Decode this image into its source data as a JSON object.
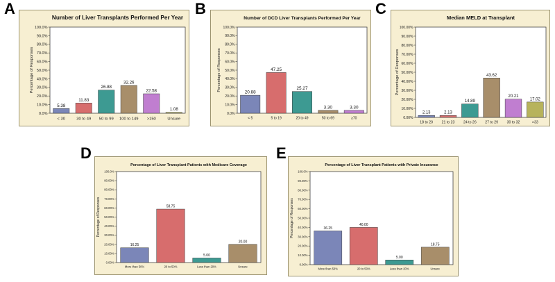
{
  "figure": {
    "panel_letters": [
      "A",
      "B",
      "C",
      "D",
      "E"
    ]
  },
  "colors": {
    "panel_bg": "#f7efd2",
    "panel_border": "#9c9470",
    "plot_bg": "#ffffff",
    "bar_stroke": "#3a3a3a"
  },
  "chart_data": [
    {
      "panel": "A",
      "type": "bar",
      "title": "Number of Liver Transplants Performed Per Year",
      "xlabel": "",
      "ylabel": "Percentage of Responses",
      "ylim": [
        0,
        100
      ],
      "yticks": [
        "0.0%",
        "10.0%",
        "20.0%",
        "30.0%",
        "40.0%",
        "50.0%",
        "60.0%",
        "70.0%",
        "80.0%",
        "90.0%",
        "100.0%"
      ],
      "categories": [
        "< 30",
        "30 to 49",
        "50 to 99",
        "100  to  149",
        ">150",
        "Unsure"
      ],
      "values": [
        5.38,
        11.83,
        26.88,
        32.26,
        22.58,
        1.08
      ],
      "value_labels": [
        "5.38",
        "11.83",
        "26.88",
        "32.26",
        "22.58",
        "1.08"
      ],
      "colors": [
        "#7b86b8",
        "#d76d6d",
        "#3d9a92",
        "#a88e6a",
        "#c07ed0",
        "#b7b35c"
      ]
    },
    {
      "panel": "B",
      "type": "bar",
      "title": "Number of DCD Liver Transplants Performed Per Year",
      "xlabel": "",
      "ylabel": "Percentage of Responses",
      "ylim": [
        0,
        100
      ],
      "yticks": [
        "0.0%",
        "10.0%",
        "20.0%",
        "30.0%",
        "40.0%",
        "50.0%",
        "60.0%",
        "70.0%",
        "80.0%",
        "90.0%",
        "100.0%"
      ],
      "categories": [
        "< 5",
        "5 to 19",
        "20 to 49",
        "50 to 69",
        "≥70"
      ],
      "values": [
        20.88,
        47.25,
        25.27,
        3.3,
        3.3
      ],
      "value_labels": [
        "20.88",
        "47.25",
        "25.27",
        "3.30",
        "3.30"
      ],
      "colors": [
        "#7b86b8",
        "#d76d6d",
        "#3d9a92",
        "#a88e6a",
        "#c07ed0"
      ]
    },
    {
      "panel": "C",
      "type": "bar",
      "title": "Median MELD at Transplant",
      "xlabel": "",
      "ylabel": "Percentage of Responses",
      "ylim": [
        0,
        100
      ],
      "yticks": [
        "0.00%",
        "10.00%",
        "20.00%",
        "30.00%",
        "40.00%",
        "50.00%",
        "60.00%",
        "70.00%",
        "80.00%",
        "90.00%",
        "100.00%"
      ],
      "categories": [
        "18 to 20",
        "21 to 23",
        "24 to 26",
        "27 to 29",
        "30 to 32",
        ">33"
      ],
      "values": [
        2.13,
        2.13,
        14.89,
        43.62,
        20.21,
        17.02
      ],
      "value_labels": [
        "2.13",
        "2.13",
        "14.89",
        "43.62",
        "20.21",
        "17.02"
      ],
      "colors": [
        "#7b86b8",
        "#d76d6d",
        "#3d9a92",
        "#a88e6a",
        "#c07ed0",
        "#b7b35c"
      ]
    },
    {
      "panel": "D",
      "type": "bar",
      "title": "Percentage of Liver Transplant Patients with Medicare Coverage",
      "xlabel": "",
      "ylabel": "Percentage of Responses",
      "ylim": [
        0,
        100
      ],
      "yticks": [
        "0.00%",
        "10.00%",
        "20.00%",
        "30.00%",
        "40.00%",
        "50.00%",
        "60.00%",
        "70.00%",
        "80.00%",
        "90.00%",
        "100.0%"
      ],
      "categories": [
        "More than 50%",
        "20 to 50%",
        "Less than 20%",
        "Unsure"
      ],
      "values": [
        16.25,
        58.75,
        5.0,
        20.0
      ],
      "value_labels": [
        "16.25",
        "58.75",
        "5.00",
        "20.00"
      ],
      "colors": [
        "#7b86b8",
        "#d76d6d",
        "#3d9a92",
        "#a88e6a"
      ]
    },
    {
      "panel": "E",
      "type": "bar",
      "title": "Percentage of Liver Transplant Patients with Private Insurance",
      "xlabel": "",
      "ylabel": "Percentage of Responses",
      "ylim": [
        0,
        100
      ],
      "yticks": [
        "0.00%",
        "10.00%",
        "20.00%",
        "30.00%",
        "40.00%",
        "50.00%",
        "60.00%",
        "70.00%",
        "80.00%",
        "90.00%",
        "100.0%"
      ],
      "categories": [
        "More than 50%",
        "20 to 50%",
        "Less than 20%",
        "Unsure"
      ],
      "values": [
        36.25,
        40.0,
        5.0,
        18.75
      ],
      "value_labels": [
        "36.25",
        "40.00",
        "5.00",
        "18.75"
      ],
      "colors": [
        "#7b86b8",
        "#d76d6d",
        "#3d9a92",
        "#a88e6a"
      ]
    }
  ]
}
